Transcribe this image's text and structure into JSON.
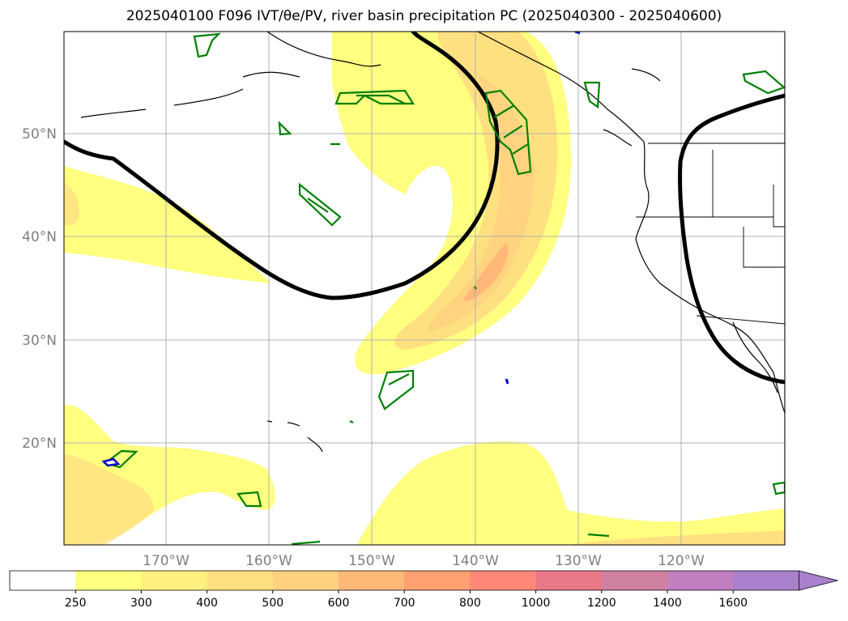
{
  "title": "2025040100 F096 IVT/θe/PV, river basin precipitation PC (2025040300 - 2025040600)",
  "latitude_labels": [
    "50°N",
    "40°N",
    "30°N",
    "20°N"
  ],
  "longitude_labels": [
    "170°W",
    "160°W",
    "150°W",
    "140°W",
    "130°W",
    "120°W"
  ],
  "colorbar": {
    "ticks": [
      "250",
      "300",
      "400",
      "500",
      "600",
      "700",
      "800",
      "1000",
      "1200",
      "1400",
      "1600"
    ],
    "colors": [
      "#ffffff",
      "#ffff80",
      "#fff080",
      "#ffe080",
      "#ffd080",
      "#ffb878",
      "#ffa070",
      "#ff8878",
      "#e87888",
      "#d080a0",
      "#c080c0",
      "#a880cc"
    ],
    "extend": "max"
  },
  "colors": {
    "theta_contour": "#000000",
    "basin_outline": "#008000",
    "pv_outline": "#0000cc",
    "grid": "#b0b0b0"
  }
}
